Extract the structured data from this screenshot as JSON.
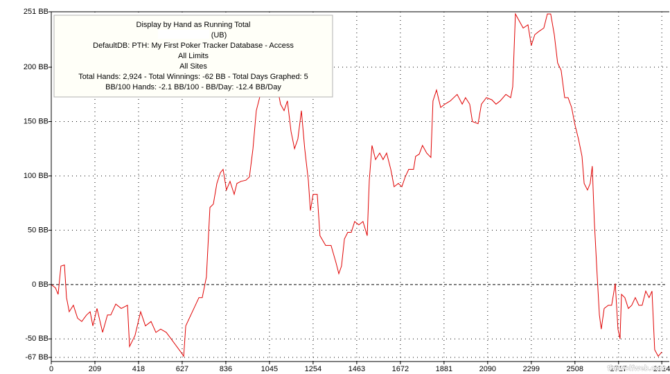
{
  "chart_data": {
    "type": "line",
    "annotation": [
      "Display by Hand as Running Total",
      "(UB)",
      "DefaultDB: PTH: My First Poker Tracker Database - Access",
      "All Limits",
      "All Sites",
      "Total Hands: 2,924 - Total Winnings: -62 BB - Total Days Graphed: 5",
      "BB/100 Hands: -2.1 BB/100 - BB/Day: -12.4 BB/Day"
    ],
    "watermark": "thewolfweb.com",
    "xlim": [
      0,
      2950
    ],
    "xticks": [
      0,
      209,
      418,
      627,
      836,
      1045,
      1254,
      1463,
      1672,
      1881,
      2090,
      2299,
      2508,
      2717,
      2924
    ],
    "ylim": [
      -67,
      251
    ],
    "yticks": [
      {
        "value": -67,
        "label": "-67 BB"
      },
      {
        "value": -50,
        "label": "-50 BB"
      },
      {
        "value": 0,
        "label": "0 BB"
      },
      {
        "value": 50,
        "label": "50 BB"
      },
      {
        "value": 100,
        "label": "100 BB"
      },
      {
        "value": 150,
        "label": "150 BB"
      },
      {
        "value": 200,
        "label": "200 BB"
      },
      {
        "value": 251,
        "label": "251 BB"
      }
    ],
    "grid": true,
    "x": [
      0,
      20,
      33,
      46,
      63,
      73,
      86,
      106,
      126,
      146,
      169,
      186,
      199,
      219,
      246,
      269,
      285,
      309,
      335,
      365,
      375,
      401,
      428,
      451,
      478,
      501,
      524,
      551,
      574,
      601,
      624,
      634,
      644,
      683,
      707,
      723,
      743,
      760,
      776,
      793,
      810,
      823,
      839,
      856,
      876,
      889,
      909,
      932,
      949,
      966,
      982,
      999,
      1015,
      1048,
      1082,
      1098,
      1115,
      1131,
      1148,
      1165,
      1181,
      1198,
      1214,
      1231,
      1241,
      1254,
      1274,
      1287,
      1314,
      1340,
      1364,
      1377,
      1390,
      1404,
      1420,
      1437,
      1453,
      1473,
      1493,
      1513,
      1523,
      1536,
      1553,
      1573,
      1589,
      1606,
      1626,
      1642,
      1662,
      1679,
      1695,
      1712,
      1735,
      1745,
      1762,
      1778,
      1798,
      1818,
      1828,
      1845,
      1865,
      1885,
      1911,
      1944,
      1968,
      1984,
      2004,
      2017,
      2044,
      2060,
      2084,
      2110,
      2130,
      2150,
      2177,
      2200,
      2210,
      2223,
      2243,
      2260,
      2283,
      2299,
      2316,
      2336,
      2359,
      2376,
      2392,
      2409,
      2425,
      2442,
      2459,
      2475,
      2492,
      2508,
      2525,
      2542,
      2552,
      2568,
      2581,
      2591,
      2601,
      2615,
      2625,
      2634,
      2648,
      2668,
      2684,
      2701,
      2714,
      2724,
      2731,
      2747,
      2764,
      2780,
      2797,
      2814,
      2830,
      2847,
      2863,
      2877,
      2890,
      2907,
      2924
    ],
    "series": [
      {
        "color": "#e00000",
        "values": [
          0,
          -3,
          -9,
          17,
          18,
          -12,
          -25,
          -19,
          -31,
          -34,
          -28,
          -25,
          -38,
          -22,
          -44,
          -28,
          -28,
          -18,
          -22,
          -19,
          -57,
          -47,
          -25,
          -38,
          -34,
          -44,
          -41,
          -44,
          -50,
          -57,
          -63,
          -66,
          -38,
          -22,
          -12,
          -12,
          7,
          71,
          74,
          93,
          103,
          106,
          87,
          95,
          83,
          93,
          95,
          96,
          99,
          125,
          160,
          173,
          185,
          192,
          182,
          166,
          160,
          169,
          141,
          125,
          134,
          160,
          125,
          96,
          68,
          83,
          83,
          45,
          36,
          36,
          20,
          10,
          17,
          42,
          48,
          48,
          58,
          55,
          58,
          45,
          96,
          128,
          115,
          121,
          115,
          121,
          106,
          90,
          93,
          90,
          99,
          106,
          106,
          118,
          120,
          128,
          121,
          117,
          169,
          179,
          163,
          166,
          169,
          175,
          166,
          172,
          166,
          150,
          148,
          166,
          172,
          170,
          166,
          169,
          175,
          172,
          182,
          249,
          242,
          236,
          239,
          220,
          230,
          233,
          236,
          249,
          249,
          230,
          204,
          197,
          172,
          172,
          163,
          147,
          134,
          118,
          93,
          87,
          93,
          109,
          58,
          7,
          -28,
          -41,
          -22,
          -19,
          -19,
          1,
          -41,
          -50,
          -9,
          -12,
          -22,
          -19,
          -12,
          -19,
          -19,
          -6,
          -12,
          -6,
          -60,
          -66,
          -62
        ]
      }
    ]
  }
}
